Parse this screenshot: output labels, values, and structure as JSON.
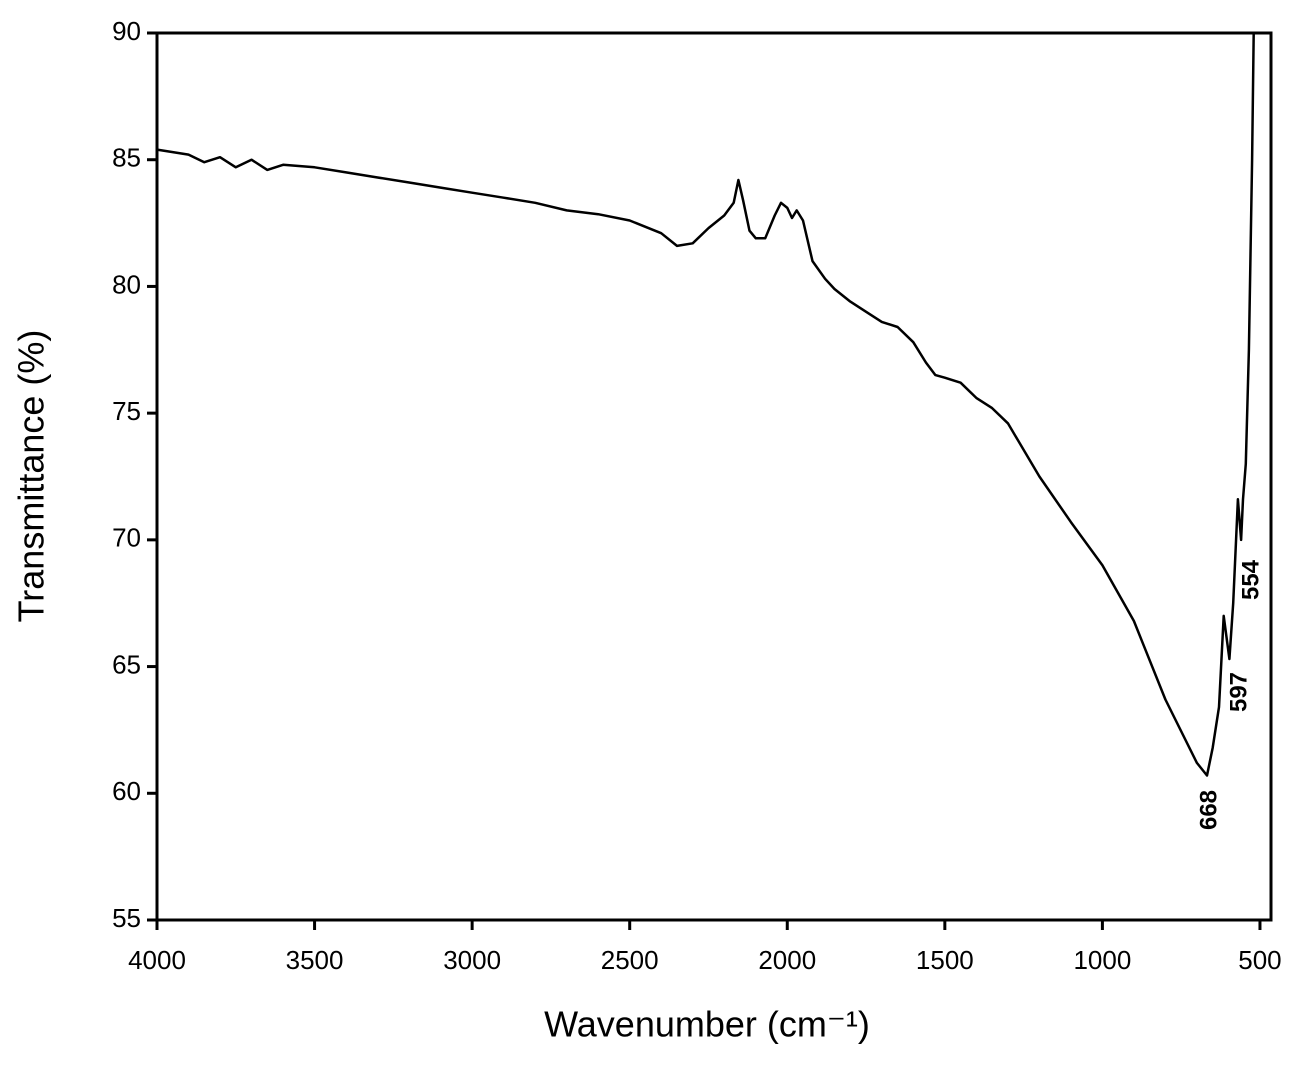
{
  "chart_data": {
    "type": "line",
    "x_label": "Wavenumber (cm⁻¹)",
    "y_label": "Transmittance (%)",
    "xlim": [
      4000,
      465
    ],
    "ylim": [
      55,
      90
    ],
    "xticks": [
      4000,
      3500,
      3000,
      2500,
      2000,
      1500,
      1000,
      500
    ],
    "yticks": [
      55,
      60,
      65,
      70,
      75,
      80,
      85,
      90
    ],
    "grid": false,
    "annotations": [
      "668",
      "597",
      "554"
    ],
    "series": [
      {
        "color": "#000000",
        "x": [
          4000,
          3900,
          3850,
          3800,
          3750,
          3700,
          3650,
          3600,
          3500,
          3400,
          3300,
          3200,
          3100,
          3000,
          2900,
          2800,
          2700,
          2600,
          2500,
          2400,
          2350,
          2300,
          2250,
          2200,
          2170,
          2155,
          2140,
          2120,
          2100,
          2070,
          2040,
          2020,
          2000,
          1985,
          1970,
          1950,
          1920,
          1880,
          1850,
          1800,
          1750,
          1700,
          1650,
          1600,
          1560,
          1530,
          1500,
          1450,
          1400,
          1350,
          1300,
          1200,
          1100,
          1000,
          900,
          800,
          700,
          668,
          650,
          630,
          615,
          597,
          585,
          570,
          560,
          554,
          545,
          535,
          525,
          520
        ],
        "values": [
          85.4,
          85.2,
          84.9,
          85.1,
          84.7,
          85.0,
          84.6,
          84.8,
          84.7,
          84.5,
          84.3,
          84.1,
          83.9,
          83.7,
          83.5,
          83.3,
          83.0,
          82.85,
          82.6,
          82.1,
          81.6,
          81.7,
          82.3,
          82.8,
          83.3,
          84.2,
          83.4,
          82.2,
          81.9,
          81.9,
          82.8,
          83.3,
          83.1,
          82.7,
          83.0,
          82.6,
          81.0,
          80.3,
          79.9,
          79.4,
          79.0,
          78.6,
          78.4,
          77.8,
          77.0,
          76.5,
          76.4,
          76.2,
          75.6,
          75.2,
          74.6,
          72.5,
          70.7,
          69.0,
          66.8,
          63.7,
          61.2,
          60.7,
          61.8,
          63.4,
          67.0,
          65.3,
          67.5,
          71.6,
          70.0,
          71.6,
          73.0,
          77.5,
          85.0,
          90.0
        ]
      }
    ]
  }
}
